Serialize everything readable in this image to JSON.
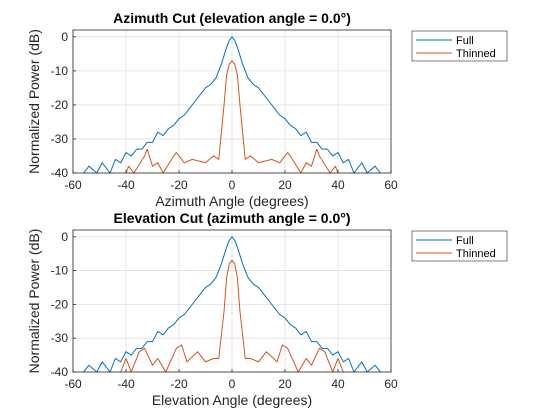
{
  "colors": {
    "full": "#0072BD",
    "thinned": "#D95319",
    "grid": "#DFDFDF",
    "axis": "#262626"
  },
  "chart_data": [
    {
      "type": "line",
      "title": "Azimuth Cut (elevation angle = 0.0°)",
      "xlabel": "Azimuth Angle (degrees)",
      "ylabel": "Normalized Power (dB)",
      "xlim": [
        -60,
        60
      ],
      "ylim": [
        -40,
        2
      ],
      "xticks": [
        -60,
        -40,
        -20,
        0,
        20,
        40,
        60
      ],
      "yticks": [
        0,
        -10,
        -20,
        -30,
        -40
      ],
      "grid": true,
      "legend_position": "outside-top-right",
      "series": [
        {
          "name": "Full",
          "x": [
            -56,
            -54,
            -51,
            -49,
            -46,
            -44,
            -42,
            -40,
            -38,
            -36,
            -34,
            -32,
            -30,
            -28,
            -26,
            -24,
            -22,
            -20,
            -18,
            -16,
            -14,
            -12,
            -10,
            -8,
            -6,
            -4,
            -2,
            -1,
            0,
            1,
            2,
            4,
            6,
            8,
            10,
            12,
            14,
            16,
            18,
            20,
            22,
            24,
            26,
            28,
            30,
            32,
            34,
            36,
            38,
            40,
            42,
            44,
            46,
            49,
            51,
            54,
            56
          ],
          "y": [
            -40,
            -38,
            -40,
            -37,
            -40,
            -36,
            -37,
            -34,
            -35,
            -33,
            -33,
            -31,
            -31,
            -28,
            -29,
            -27,
            -26,
            -24,
            -23,
            -21,
            -19,
            -17,
            -15,
            -14,
            -12,
            -8,
            -3,
            -1,
            0,
            -1,
            -3,
            -8,
            -12,
            -14,
            -15,
            -17,
            -19,
            -21,
            -23,
            -24,
            -26,
            -27,
            -29,
            -28,
            -31,
            -31,
            -33,
            -33,
            -35,
            -34,
            -37,
            -36,
            -40,
            -37,
            -40,
            -38,
            -40
          ]
        },
        {
          "name": "Thinned",
          "x": [
            -40,
            -39,
            -37,
            -33,
            -32,
            -30,
            -28,
            -26,
            -22,
            -21,
            -18,
            -15,
            -10,
            -7,
            -5,
            -3,
            -2,
            -1,
            0,
            1,
            2,
            3,
            5,
            7,
            10,
            15,
            18,
            21,
            22,
            26,
            28,
            30,
            32,
            33,
            37,
            39,
            40
          ],
          "y": [
            -40,
            -38,
            -40,
            -35,
            -33,
            -38,
            -37,
            -40,
            -35,
            -34,
            -37,
            -36,
            -37,
            -35,
            -36,
            -20,
            -11,
            -8,
            -7,
            -8,
            -11,
            -20,
            -36,
            -35,
            -37,
            -36,
            -37,
            -34,
            -35,
            -40,
            -37,
            -38,
            -33,
            -35,
            -40,
            -38,
            -40
          ]
        }
      ]
    },
    {
      "type": "line",
      "title": "Elevation Cut (azimuth angle = 0.0°)",
      "xlabel": "Elevation Angle (degrees)",
      "ylabel": "Normalized Power (dB)",
      "xlim": [
        -60,
        60
      ],
      "ylim": [
        -40,
        2
      ],
      "xticks": [
        -60,
        -40,
        -20,
        0,
        20,
        40,
        60
      ],
      "yticks": [
        0,
        -10,
        -20,
        -30,
        -40
      ],
      "grid": true,
      "legend_position": "outside-top-right",
      "series": [
        {
          "name": "Full",
          "x": [
            -56,
            -54,
            -51,
            -49,
            -46,
            -44,
            -42,
            -40,
            -38,
            -36,
            -34,
            -32,
            -30,
            -28,
            -26,
            -24,
            -22,
            -20,
            -18,
            -16,
            -14,
            -12,
            -10,
            -8,
            -6,
            -4,
            -2,
            -1,
            0,
            1,
            2,
            4,
            6,
            8,
            10,
            12,
            14,
            16,
            18,
            20,
            22,
            24,
            26,
            28,
            30,
            32,
            34,
            36,
            38,
            40,
            42,
            44,
            46,
            49,
            51,
            54,
            56
          ],
          "y": [
            -40,
            -38,
            -40,
            -37,
            -40,
            -36,
            -37,
            -34,
            -35,
            -33,
            -33,
            -31,
            -31,
            -28,
            -29,
            -27,
            -26,
            -24,
            -23,
            -21,
            -19,
            -17,
            -15,
            -14,
            -12,
            -8,
            -3,
            -1,
            0,
            -1,
            -3,
            -8,
            -12,
            -14,
            -15,
            -17,
            -19,
            -21,
            -23,
            -24,
            -26,
            -27,
            -29,
            -28,
            -31,
            -31,
            -33,
            -33,
            -35,
            -34,
            -37,
            -36,
            -40,
            -37,
            -40,
            -38,
            -40
          ]
        },
        {
          "name": "Thinned",
          "x": [
            -42,
            -40,
            -38,
            -35,
            -33,
            -30,
            -28,
            -25,
            -21,
            -19,
            -17,
            -13,
            -10,
            -7,
            -5,
            -3,
            -2,
            -1,
            0,
            1,
            2,
            3,
            5,
            7,
            10,
            13,
            17,
            19,
            21,
            25,
            28,
            30,
            33,
            35,
            38,
            40,
            42
          ],
          "y": [
            -40,
            -36,
            -40,
            -34,
            -33,
            -38,
            -36,
            -40,
            -33,
            -32,
            -37,
            -34,
            -37,
            -36,
            -36,
            -22,
            -12,
            -8,
            -7,
            -8,
            -12,
            -22,
            -36,
            -36,
            -37,
            -34,
            -37,
            -32,
            -33,
            -40,
            -36,
            -38,
            -33,
            -34,
            -40,
            -36,
            -40
          ]
        }
      ]
    }
  ]
}
